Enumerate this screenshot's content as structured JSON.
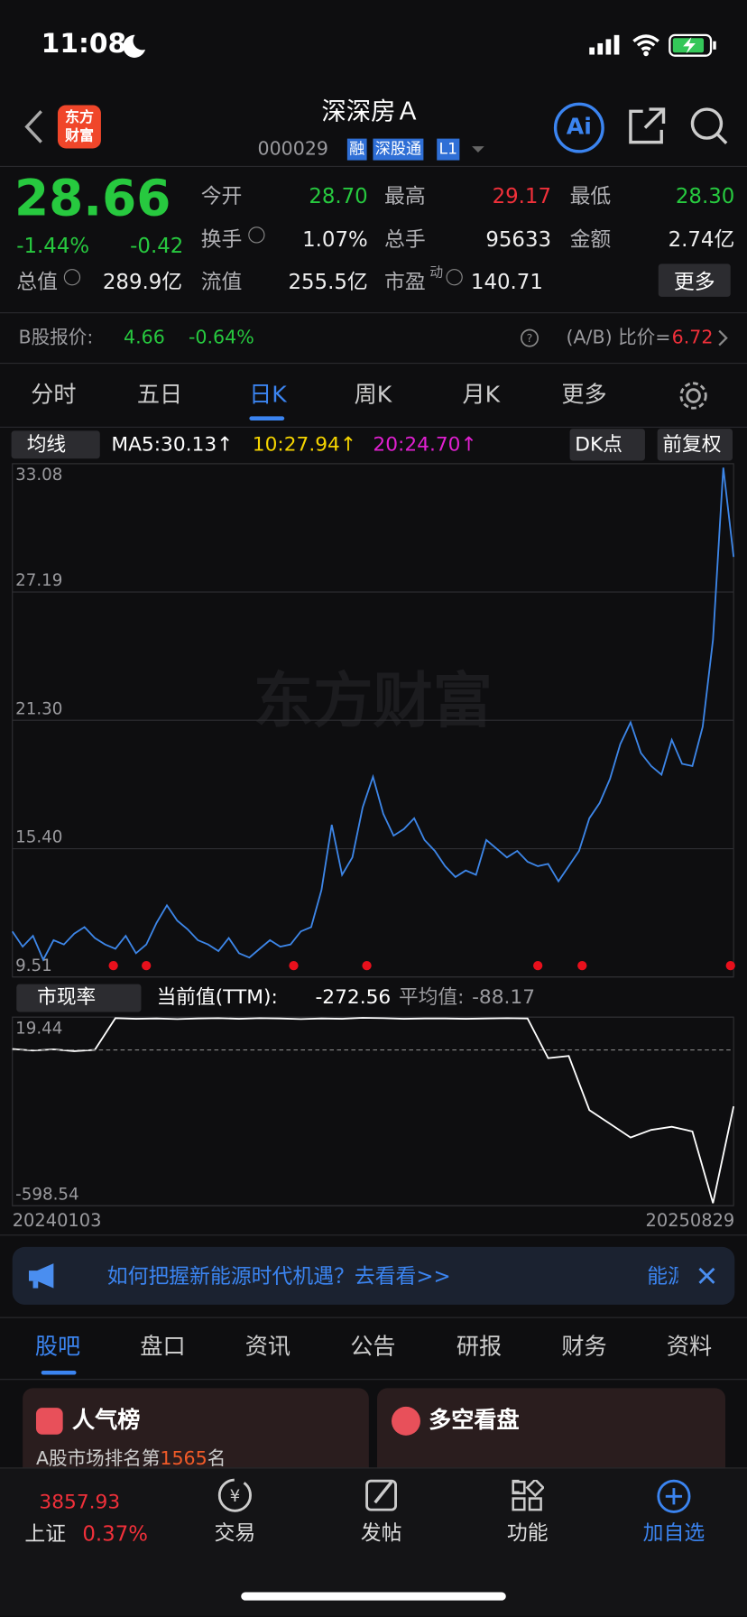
{
  "status_bar": {
    "time": "11:08"
  },
  "header": {
    "logo": [
      "东方",
      "财富"
    ],
    "title": "深深房Ａ",
    "code": "000029",
    "tags": [
      "融",
      "深股通",
      "L1"
    ],
    "ai_button": "Ai"
  },
  "quote": {
    "price": "28.66",
    "change_pct": "-1.44%",
    "change": "-0.42",
    "fields": [
      {
        "label": "今开",
        "value": "28.70"
      },
      {
        "label": "最高",
        "value": "29.17"
      },
      {
        "label": "最低",
        "value": "28.30"
      },
      {
        "label": "换手",
        "value": "1.07%"
      },
      {
        "label": "总手",
        "value": "95633"
      },
      {
        "label": "金额",
        "value": "2.74亿"
      },
      {
        "label": "总值",
        "value": "289.9亿"
      },
      {
        "label": "流值",
        "value": "255.5亿"
      },
      {
        "label": "市盈",
        "sup": "动",
        "value": "140.71"
      }
    ],
    "more": "更多"
  },
  "b_share": {
    "label": "B股报价:",
    "price": "4.66",
    "change_pct": "-0.64%",
    "ratio_label": "(A/B) 比价=",
    "ratio": "6.72"
  },
  "period_tabs": [
    "分时",
    "五日",
    "日K",
    "周K",
    "月K",
    "更多"
  ],
  "ma_bar": {
    "selector": "均线",
    "ma5": "MA5:30.13↑",
    "ma10": "10:27.94↑",
    "ma20": "20:24.70↑",
    "buttons": [
      "DK点",
      "前复权"
    ]
  },
  "price_chart": {
    "type": "line",
    "watermark": "东方财富",
    "color": "#3d86e8",
    "ylim": [
      9.51,
      33.08
    ],
    "yticks": [
      33.08,
      27.19,
      {
        "value": 21.3,
        "label": "21.30"
      },
      {
        "value": 15.4,
        "label": "15.40"
      },
      9.51
    ],
    "values": [
      11.6,
      10.9,
      11.4,
      10.3,
      11.2,
      11.0,
      11.5,
      11.8,
      11.3,
      11.0,
      10.8,
      11.4,
      10.6,
      11.0,
      12.0,
      12.8,
      12.1,
      11.7,
      11.2,
      11.0,
      10.7,
      11.3,
      10.6,
      10.4,
      10.8,
      11.2,
      10.9,
      11.0,
      11.6,
      11.8,
      13.5,
      16.5,
      14.2,
      15.0,
      17.3,
      18.7,
      17.0,
      16.0,
      16.3,
      16.8,
      15.8,
      15.3,
      14.6,
      14.1,
      14.4,
      14.2,
      15.8,
      15.4,
      15.0,
      15.3,
      14.8,
      14.6,
      14.7,
      13.9,
      14.6,
      15.3,
      16.8,
      17.5,
      18.6,
      20.2,
      21.2,
      19.8,
      19.2,
      18.8,
      20.4,
      19.3,
      19.2,
      21.0,
      25.0,
      32.9,
      28.8
    ]
  },
  "indicator": {
    "selector": "市现率",
    "current_label": "当前值(TTM):",
    "current": -272.56,
    "average_label": "平均值:",
    "average": -88.17
  },
  "indicator_chart": {
    "type": "line",
    "color": "#ffffff",
    "ylim": [
      -598.54,
      19.44
    ],
    "yticks": [
      19.44,
      -598.54
    ],
    "x_labels": [
      "20240103",
      "20250829"
    ],
    "values": [
      -85,
      -90,
      -86,
      -92,
      -88,
      16,
      14,
      15,
      13,
      15,
      16,
      14,
      16,
      15,
      13,
      15,
      14,
      17,
      16,
      14,
      15,
      15,
      14,
      15,
      16,
      15,
      -115,
      -108,
      -285,
      -330,
      -375,
      -350,
      -340,
      -355,
      -590,
      -272.56
    ]
  },
  "banner": {
    "text": "如何把握新能源时代机遇？去看看>>",
    "marquee": "能源"
  },
  "content_tabs": [
    "股吧",
    "盘口",
    "资讯",
    "公告",
    "研报",
    "财务",
    "资料"
  ],
  "cards": [
    {
      "title": "人气榜",
      "text_before": "A股市场排名第",
      "rank": "1565",
      "text_after": "名"
    },
    {
      "title": "多空看盘"
    }
  ],
  "bottom_nav": {
    "index_value": "3857.93",
    "index_name": "上证",
    "index_change": "0.37%",
    "items": [
      "交易",
      "发帖",
      "功能",
      "加自选"
    ]
  }
}
